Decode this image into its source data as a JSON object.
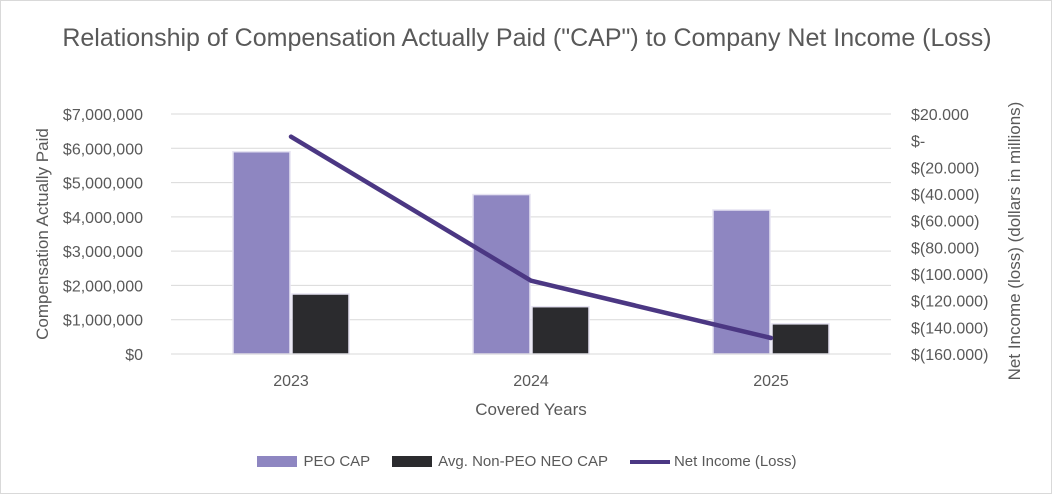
{
  "chart_data": {
    "type": "bar",
    "title": "Relationship of Compensation Actually Paid (\"CAP\") to Company Net Income (Loss)",
    "categories": [
      "2023",
      "2024",
      "2025"
    ],
    "xlabel": "Covered Years",
    "ylabel": "Compensation Actually Paid",
    "ylabel_right": "Net Income (loss) (dollars in millions)",
    "ylim": [
      0,
      7000000
    ],
    "ylim_right": [
      -160,
      20
    ],
    "yticks": [
      "$0",
      "$1,000,000",
      "$2,000,000",
      "$3,000,000",
      "$4,000,000",
      "$5,000,000",
      "$6,000,000",
      "$7,000,000"
    ],
    "yticks_right": [
      "$(160.000)",
      "$(140.000)",
      "$(120.000)",
      "$(100.000)",
      "$(80.000)",
      "$(60.000)",
      "$(40.000)",
      "$(20.000)",
      "$-",
      "$20.000"
    ],
    "grid": true,
    "legend_position": "bottom",
    "series": [
      {
        "name": "PEO CAP",
        "type": "bar",
        "axis": "left",
        "color": "#8e86c1",
        "values": [
          5900000,
          4650000,
          4200000
        ]
      },
      {
        "name": "Avg. Non-PEO NEO CAP",
        "type": "bar",
        "axis": "left",
        "color": "#2b2b2e",
        "values": [
          1750000,
          1380000,
          880000
        ]
      },
      {
        "name": "Net Income (Loss)",
        "type": "line",
        "axis": "right",
        "color": "#4b3783",
        "values": [
          3,
          -105,
          -148
        ]
      }
    ]
  }
}
